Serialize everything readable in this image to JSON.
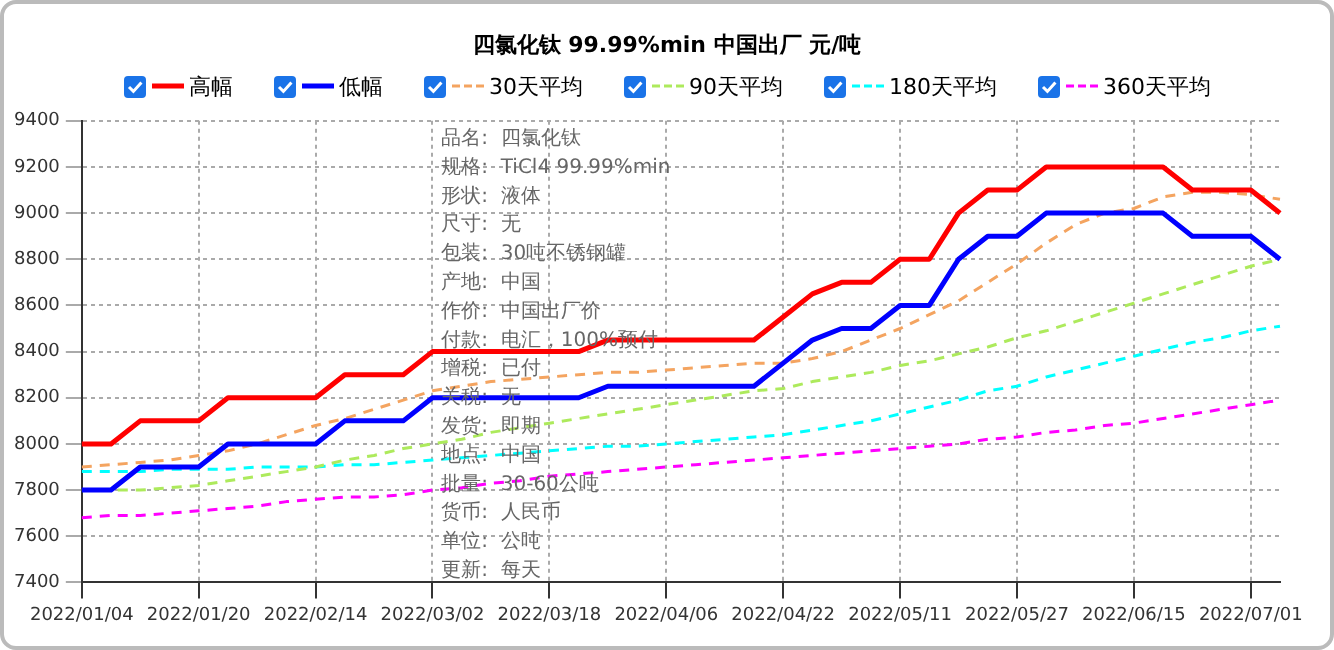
{
  "chart_data": {
    "type": "line",
    "title": "四氯化钛 99.99%min 中国出厂 元/吨",
    "categories": [
      "2022/01/04",
      null,
      null,
      null,
      "2022/01/20",
      null,
      null,
      null,
      "2022/02/14",
      null,
      null,
      null,
      "2022/03/02",
      null,
      null,
      null,
      "2022/03/18",
      null,
      null,
      null,
      "2022/04/06",
      null,
      null,
      null,
      "2022/04/22",
      null,
      null,
      null,
      "2022/05/11",
      null,
      null,
      null,
      "2022/05/27",
      null,
      null,
      null,
      "2022/06/15",
      null,
      null,
      null,
      "2022/07/01",
      null
    ],
    "series": [
      {
        "name": "高幅",
        "color": "#ff0000",
        "line_style": "solid",
        "values": [
          8000,
          8000,
          8100,
          8100,
          8100,
          8200,
          8200,
          8200,
          8200,
          8300,
          8300,
          8300,
          8400,
          8400,
          8400,
          8400,
          8400,
          8400,
          8450,
          8450,
          8450,
          8450,
          8450,
          8450,
          8550,
          8650,
          8700,
          8700,
          8800,
          8800,
          9000,
          9100,
          9100,
          9200,
          9200,
          9200,
          9200,
          9200,
          9100,
          9100,
          9100,
          9000
        ]
      },
      {
        "name": "低幅",
        "color": "#0000ff",
        "line_style": "solid",
        "values": [
          7800,
          7800,
          7900,
          7900,
          7900,
          8000,
          8000,
          8000,
          8000,
          8100,
          8100,
          8100,
          8200,
          8200,
          8200,
          8200,
          8200,
          8200,
          8250,
          8250,
          8250,
          8250,
          8250,
          8250,
          8350,
          8450,
          8500,
          8500,
          8600,
          8600,
          8800,
          8900,
          8900,
          9000,
          9000,
          9000,
          9000,
          9000,
          8900,
          8900,
          8900,
          8800
        ]
      },
      {
        "name": "30天平均",
        "color": "#f4a460",
        "line_style": "dashed",
        "values": [
          7900,
          7910,
          7920,
          7930,
          7950,
          7970,
          8000,
          8040,
          8080,
          8110,
          8150,
          8190,
          8230,
          8250,
          8270,
          8280,
          8290,
          8300,
          8310,
          8310,
          8320,
          8330,
          8340,
          8350,
          8350,
          8370,
          8400,
          8450,
          8500,
          8560,
          8620,
          8700,
          8780,
          8870,
          8950,
          9000,
          9020,
          9070,
          9090,
          9090,
          9080,
          9060
        ]
      },
      {
        "name": "90天平均",
        "color": "#adea5c",
        "line_style": "dashed",
        "values": [
          7800,
          7800,
          7800,
          7810,
          7820,
          7840,
          7860,
          7880,
          7900,
          7930,
          7950,
          7980,
          8000,
          8020,
          8050,
          8070,
          8090,
          8110,
          8130,
          8150,
          8170,
          8190,
          8210,
          8230,
          8240,
          8270,
          8290,
          8310,
          8340,
          8360,
          8390,
          8420,
          8460,
          8490,
          8530,
          8570,
          8610,
          8650,
          8690,
          8730,
          8770,
          8800
        ]
      },
      {
        "name": "180天平均",
        "color": "#00ffff",
        "line_style": "dashed",
        "values": [
          7880,
          7880,
          7880,
          7890,
          7890,
          7890,
          7900,
          7900,
          7900,
          7910,
          7910,
          7920,
          7930,
          7940,
          7950,
          7960,
          7970,
          7980,
          7990,
          7990,
          8000,
          8010,
          8020,
          8030,
          8040,
          8060,
          8080,
          8100,
          8130,
          8160,
          8190,
          8230,
          8250,
          8290,
          8320,
          8350,
          8380,
          8410,
          8440,
          8460,
          8490,
          8510
        ]
      },
      {
        "name": "360天平均",
        "color": "#ff00ff",
        "line_style": "dashed",
        "values": [
          7680,
          7690,
          7690,
          7700,
          7710,
          7720,
          7730,
          7750,
          7760,
          7770,
          7770,
          7780,
          7800,
          7810,
          7830,
          7840,
          7860,
          7870,
          7880,
          7890,
          7900,
          7910,
          7920,
          7930,
          7940,
          7950,
          7960,
          7970,
          7980,
          7990,
          8000,
          8020,
          8030,
          8050,
          8060,
          8080,
          8090,
          8110,
          8130,
          8150,
          8170,
          8190
        ]
      }
    ],
    "ylim": [
      7400,
      9400
    ],
    "yticks": [
      7400,
      7600,
      7800,
      8000,
      8200,
      8400,
      8600,
      8800,
      9000,
      9200,
      9400
    ],
    "grid": true,
    "legend": "top",
    "marker": "none",
    "annotations": [
      "品名:  四氯化钛",
      "规格:  TiCl4 99.99%min",
      "形状:  液体",
      "尺寸:  无",
      "包装:  30吨不锈钢罐",
      "产地:  中国",
      "作价:  中国出厂价",
      "付款:  电汇，100%预付",
      "增税:  已付",
      "关税:  无",
      "发货:  即期",
      "地点:  中国",
      "批量:  30-60公吨",
      "货币:  人民币",
      "单位:  公吨",
      "更新:  每天"
    ]
  }
}
